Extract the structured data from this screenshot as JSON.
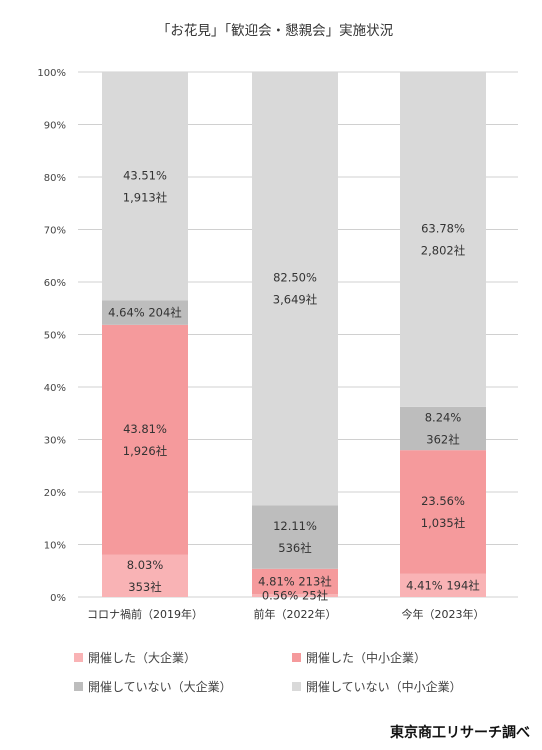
{
  "chart_data": {
    "type": "bar",
    "stacked": true,
    "title": "「お花見」「歓迎会・懇親会」実施状況",
    "categories": [
      "コロナ禍前（2019年）",
      "前年（2022年）",
      "今年（2023年）"
    ],
    "y_ticks": [
      "0%",
      "10%",
      "20%",
      "30%",
      "40%",
      "50%",
      "60%",
      "70%",
      "80%",
      "90%",
      "100%"
    ],
    "ylim": [
      0,
      100
    ],
    "grid": true,
    "legend_position": "bottom",
    "series": [
      {
        "name": "開催した（大企業）",
        "color": "#f9b3b5",
        "values": [
          8.03,
          0.56,
          4.41
        ],
        "labels": [
          [
            "8.03%",
            "353社"
          ],
          [
            "0.56% 25社"
          ],
          [
            "4.41% 194社"
          ]
        ]
      },
      {
        "name": "開催した（中小企業）",
        "color": "#f59a9c",
        "values": [
          43.81,
          4.81,
          23.56
        ],
        "labels": [
          [
            "43.81%",
            "1,926社"
          ],
          [
            "4.81% 213社"
          ],
          [
            "23.56%",
            "1,035社"
          ]
        ]
      },
      {
        "name": "開催していない（大企業）",
        "color": "#bdbdbd",
        "values": [
          4.64,
          12.11,
          8.24
        ],
        "labels": [
          [
            "4.64% 204社"
          ],
          [
            "12.11%",
            "536社"
          ],
          [
            "8.24%",
            "362社"
          ]
        ]
      },
      {
        "name": "開催していない（中小企業）",
        "color": "#d9d9d9",
        "values": [
          43.51,
          82.5,
          63.78
        ],
        "labels": [
          [
            "43.51%",
            "1,913社"
          ],
          [
            "82.50%",
            "3,649社"
          ],
          [
            "63.78%",
            "2,802社"
          ]
        ]
      }
    ]
  },
  "source": "東京商工リサーチ調べ"
}
